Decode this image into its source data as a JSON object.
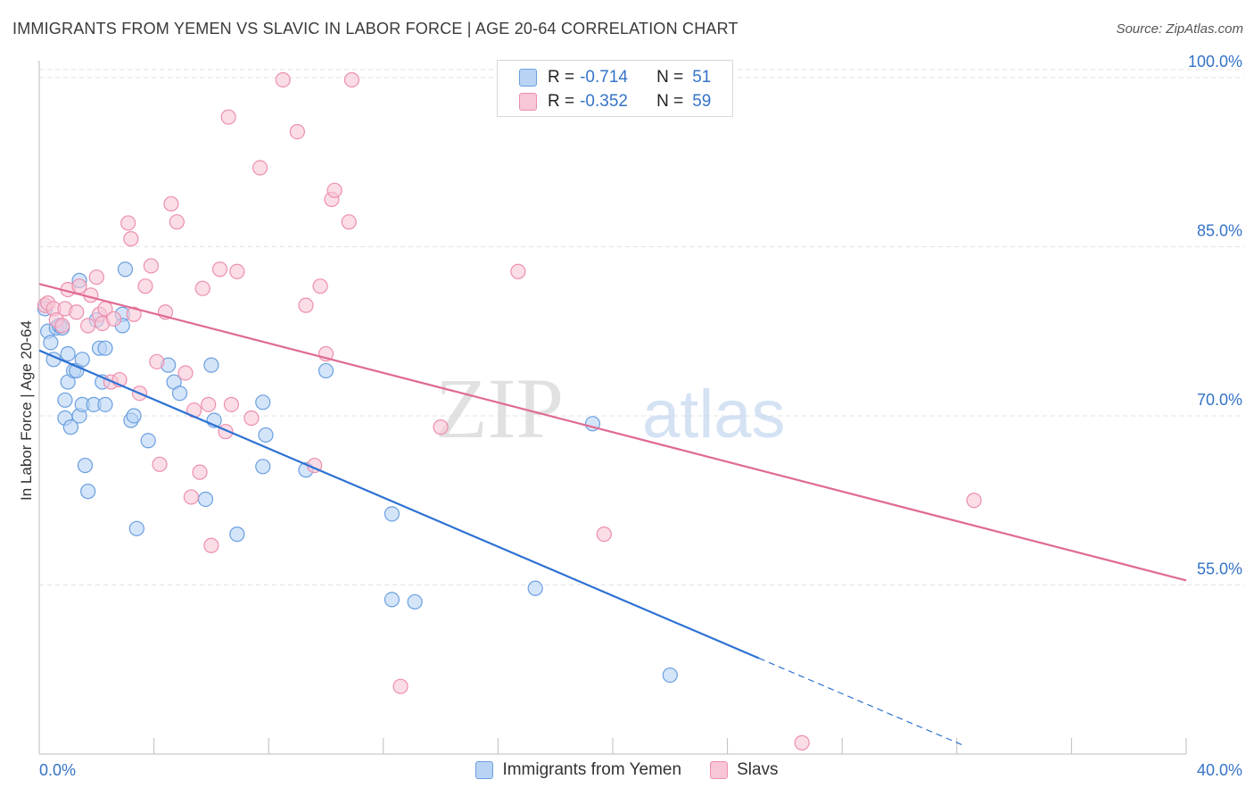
{
  "header": {
    "title": "IMMIGRANTS FROM YEMEN VS SLAVIC IN LABOR FORCE | AGE 20-64 CORRELATION CHART",
    "source": "Source: ZipAtlas.com"
  },
  "watermark": {
    "part1": "ZIP",
    "part2": "atlas"
  },
  "legend": {
    "rows": [
      {
        "r_label": "R =",
        "r_value": "-0.714",
        "n_label": "N =",
        "n_value": "51"
      },
      {
        "r_label": "R =",
        "r_value": "-0.352",
        "n_label": "N =",
        "n_value": "59"
      }
    ]
  },
  "colors": {
    "blue_fill": "#b9d3f5",
    "blue_stroke": "#6a9fe0",
    "blue_line": "#2d72d2",
    "pink_fill": "#f8c6d6",
    "pink_stroke": "#ec8fae",
    "pink_line": "#e06a95",
    "tick_label": "#3473c7",
    "grid": "#e3e3e3"
  },
  "chart_data": {
    "type": "scatter",
    "title": "IMMIGRANTS FROM YEMEN VS SLAVIC IN LABOR FORCE | AGE 20-64 CORRELATION CHART",
    "xlabel": "",
    "ylabel": "In Labor Force | Age 20-64",
    "xlim": [
      0,
      40
    ],
    "ylim": [
      40,
      101.5
    ],
    "x_tick_labels": [
      "0.0%",
      "40.0%"
    ],
    "y_ticks": [
      55,
      70,
      85,
      100
    ],
    "y_tick_labels": [
      "55.0%",
      "70.0%",
      "85.0%",
      "100.0%"
    ],
    "grid": true,
    "legend_position": "top-center",
    "series": [
      {
        "name": "Immigrants from Yemen",
        "color": "#6a9fe0",
        "points": [
          [
            0.2,
            79.5
          ],
          [
            0.3,
            77.5
          ],
          [
            0.4,
            76.5
          ],
          [
            0.5,
            75.0
          ],
          [
            0.6,
            77.8
          ],
          [
            0.7,
            78.0
          ],
          [
            0.8,
            77.8
          ],
          [
            0.9,
            69.8
          ],
          [
            0.9,
            71.4
          ],
          [
            1.0,
            75.5
          ],
          [
            1.0,
            73.0
          ],
          [
            1.1,
            69.0
          ],
          [
            1.2,
            74.0
          ],
          [
            1.3,
            74.0
          ],
          [
            1.4,
            70.0
          ],
          [
            1.4,
            82.0
          ],
          [
            1.5,
            71.0
          ],
          [
            1.5,
            75.0
          ],
          [
            1.6,
            65.6
          ],
          [
            1.7,
            63.3
          ],
          [
            1.9,
            71.0
          ],
          [
            2.0,
            78.5
          ],
          [
            2.1,
            76.0
          ],
          [
            2.2,
            73.0
          ],
          [
            2.3,
            71.0
          ],
          [
            2.3,
            76.0
          ],
          [
            2.9,
            79.0
          ],
          [
            2.9,
            78.0
          ],
          [
            3.0,
            83.0
          ],
          [
            3.2,
            69.6
          ],
          [
            3.3,
            70.0
          ],
          [
            3.4,
            60.0
          ],
          [
            3.8,
            67.8
          ],
          [
            4.5,
            74.5
          ],
          [
            4.7,
            73.0
          ],
          [
            4.9,
            72.0
          ],
          [
            5.8,
            62.6
          ],
          [
            6.0,
            74.5
          ],
          [
            6.1,
            69.6
          ],
          [
            6.9,
            59.5
          ],
          [
            7.8,
            71.2
          ],
          [
            7.8,
            65.5
          ],
          [
            7.9,
            68.3
          ],
          [
            9.3,
            65.2
          ],
          [
            10.0,
            74.0
          ],
          [
            12.3,
            61.3
          ],
          [
            12.3,
            53.7
          ],
          [
            13.1,
            53.5
          ],
          [
            17.3,
            54.7
          ],
          [
            19.3,
            69.3
          ],
          [
            22.0,
            47.0
          ]
        ]
      },
      {
        "name": "Slavs",
        "color": "#ec8fae",
        "points": [
          [
            0.2,
            79.8
          ],
          [
            0.3,
            80.0
          ],
          [
            0.5,
            79.5
          ],
          [
            0.6,
            78.5
          ],
          [
            0.8,
            78.0
          ],
          [
            0.9,
            79.5
          ],
          [
            1.0,
            81.2
          ],
          [
            1.3,
            79.2
          ],
          [
            1.4,
            81.5
          ],
          [
            1.7,
            78.0
          ],
          [
            1.8,
            80.7
          ],
          [
            2.0,
            82.3
          ],
          [
            2.1,
            79.0
          ],
          [
            2.2,
            78.2
          ],
          [
            2.3,
            79.5
          ],
          [
            2.5,
            73.0
          ],
          [
            2.6,
            78.6
          ],
          [
            2.8,
            73.2
          ],
          [
            3.1,
            87.1
          ],
          [
            3.2,
            85.7
          ],
          [
            3.3,
            79.0
          ],
          [
            3.5,
            72.0
          ],
          [
            3.7,
            81.5
          ],
          [
            3.9,
            83.3
          ],
          [
            4.1,
            74.8
          ],
          [
            4.2,
            65.7
          ],
          [
            4.4,
            79.2
          ],
          [
            4.6,
            88.8
          ],
          [
            4.8,
            87.2
          ],
          [
            5.1,
            73.8
          ],
          [
            5.3,
            62.8
          ],
          [
            5.4,
            70.5
          ],
          [
            5.6,
            65.0
          ],
          [
            5.7,
            81.3
          ],
          [
            5.9,
            71.0
          ],
          [
            6.0,
            58.5
          ],
          [
            6.3,
            83.0
          ],
          [
            6.5,
            68.6
          ],
          [
            6.6,
            96.5
          ],
          [
            6.7,
            71.0
          ],
          [
            6.9,
            82.8
          ],
          [
            7.4,
            69.8
          ],
          [
            7.7,
            92.0
          ],
          [
            8.5,
            99.8
          ],
          [
            9.0,
            95.2
          ],
          [
            9.3,
            79.8
          ],
          [
            9.6,
            65.6
          ],
          [
            9.8,
            81.5
          ],
          [
            10.0,
            75.5
          ],
          [
            10.2,
            89.2
          ],
          [
            10.3,
            90.0
          ],
          [
            10.8,
            87.2
          ],
          [
            10.9,
            99.8
          ],
          [
            12.6,
            46.0
          ],
          [
            16.7,
            82.8
          ],
          [
            19.7,
            59.5
          ],
          [
            32.6,
            62.5
          ],
          [
            26.6,
            41.0
          ],
          [
            14.0,
            69.0
          ]
        ]
      }
    ],
    "trend_lines": [
      {
        "series": "Immigrants from Yemen",
        "from": [
          0,
          75.8
        ],
        "to": [
          25.1,
          48.5
        ],
        "dashed_to": [
          32.2,
          40.8
        ]
      },
      {
        "series": "Slavs",
        "from": [
          0,
          81.7
        ],
        "to": [
          40,
          55.4
        ]
      }
    ]
  },
  "bottom_legend": [
    {
      "label": "Immigrants from Yemen"
    },
    {
      "label": "Slavs"
    }
  ]
}
